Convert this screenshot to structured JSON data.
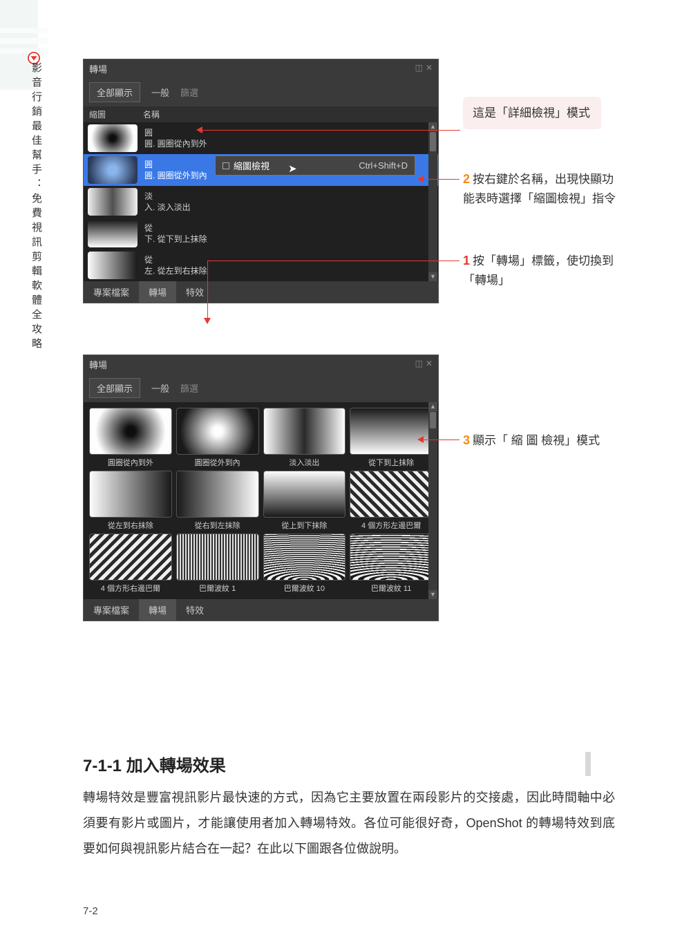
{
  "side": {
    "title": "影音行銷最佳幫手：免費視訊剪輯軟體全攻略"
  },
  "panel1": {
    "title": "轉場",
    "show_all": "全部顯示",
    "tab_general": "一般",
    "filter": "篩選",
    "col_thumb": "縮圖",
    "col_name": "名稱",
    "rows": [
      {
        "l1": "圓",
        "l2": "圓. 圓圈從內到外",
        "thumb": "g-radial-dark"
      },
      {
        "l1": "圓",
        "l2": "圓. 圓圈從外到內",
        "thumb": "g-blue"
      },
      {
        "l1": "淡",
        "l2": "入. 淡入淡出",
        "thumb": "g-fade-v"
      },
      {
        "l1": "從",
        "l2": "下. 從下到上抹除",
        "thumb": "g-bt"
      },
      {
        "l1": "從",
        "l2": "左. 從左到右抹除",
        "thumb": "g-lr"
      }
    ],
    "ctx_label": "縮圖檢視",
    "ctx_kbd": "Ctrl+Shift+D",
    "tab_project": "專案檔案",
    "tab_trans": "轉場",
    "tab_fx": "特效"
  },
  "panel2": {
    "title": "轉場",
    "show_all": "全部顯示",
    "tab_general": "一般",
    "filter": "篩選",
    "items": [
      {
        "cap": "圓圈從內到外",
        "thumb": "g-radial-dark"
      },
      {
        "cap": "圓圈從外到內",
        "thumb": "g-radial-light"
      },
      {
        "cap": "淡入淡出",
        "thumb": "g-fade"
      },
      {
        "cap": "從下到上抹除",
        "thumb": "g-bt"
      },
      {
        "cap": "從左到右抹除",
        "thumb": "g-lr"
      },
      {
        "cap": "從右到左抹除",
        "thumb": "g-rl"
      },
      {
        "cap": "從上到下抹除",
        "thumb": "g-tb"
      },
      {
        "cap": "4 個方形左邊巴爾",
        "thumb": "g-diag"
      },
      {
        "cap": "4 個方形右邊巴爾",
        "thumb": "g-diag2"
      },
      {
        "cap": "巴爾波紋 1",
        "thumb": "g-noise"
      },
      {
        "cap": "巴爾波紋 10",
        "thumb": "g-wave1"
      },
      {
        "cap": "巴爾波紋 11",
        "thumb": "g-wave2"
      }
    ],
    "tab_project": "專案檔案",
    "tab_trans": "轉場",
    "tab_fx": "特效"
  },
  "callouts": {
    "box": "這是「詳細檢視」模式",
    "c2": "按右鍵於名稱，出現快顯功能表時選擇「縮圖檢視」指令",
    "c1": "按「轉場」標籤，使切換到「轉場」",
    "c3": "顯示「 縮 圖 檢視」模式"
  },
  "section": {
    "heading": "7-1-1  加入轉場效果",
    "body": "轉場特效是豐富視訊影片最快速的方式，因為它主要放置在兩段影片的交接處，因此時間軸中必須要有影片或圖片，才能讓使用者加入轉場特效。各位可能很好奇，OpenShot 的轉場特效到底要如何與視訊影片結合在一起？在此以下圖跟各位做說明。",
    "page": "7-2"
  },
  "colors": {
    "red": "#e7372f",
    "orange": "#f28a1c",
    "panel_bg": "#3a3a3a",
    "dark_bg": "#202020",
    "select_blue": "#3a78e6",
    "callout_bg": "#fbeeee"
  }
}
